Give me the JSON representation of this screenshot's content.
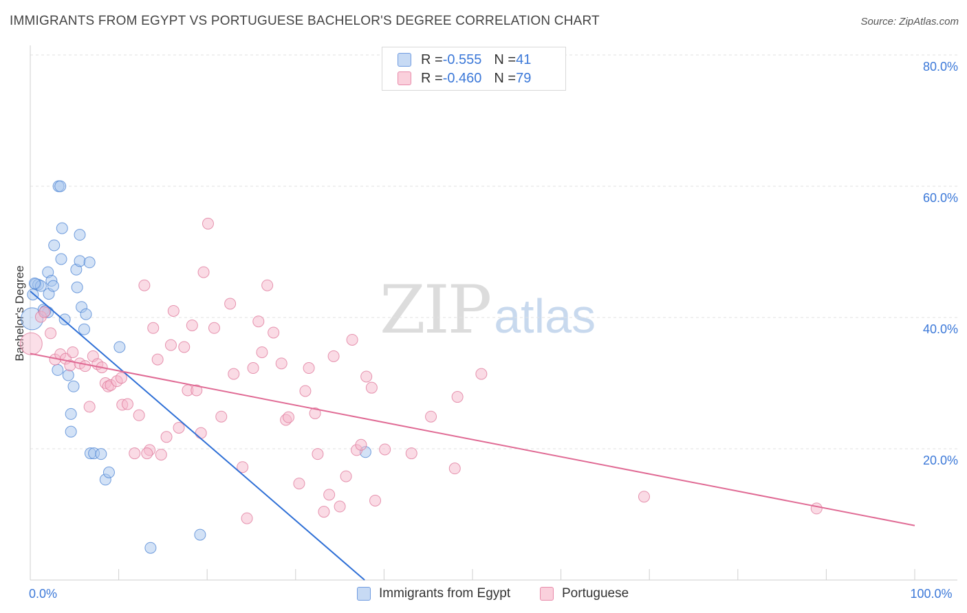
{
  "title": "IMMIGRANTS FROM EGYPT VS PORTUGUESE BACHELOR'S DEGREE CORRELATION CHART",
  "source": "Source: ZipAtlas.com",
  "watermark": {
    "zip": "ZIP",
    "atlas": "atlas"
  },
  "legend": {
    "rows": [
      {
        "r_label": "R = ",
        "r_value": "-0.555",
        "n_label": "N = ",
        "n_value": "41"
      },
      {
        "r_label": "R = ",
        "r_value": "-0.460",
        "n_label": "N = ",
        "n_value": "79"
      }
    ]
  },
  "colors": {
    "egypt_fill": "#a8c6ee",
    "egypt_stroke": "#4f86d4",
    "egypt_line": "#2e6fd6",
    "portuguese_fill": "#f6b8cb",
    "portuguese_stroke": "#e07a9c",
    "portuguese_line": "#e06a94",
    "tick_label": "#3b78d8",
    "grid": "#e2e2e2"
  },
  "chart_data": {
    "type": "scatter",
    "title": "IMMIGRANTS FROM EGYPT VS PORTUGUESE BACHELOR'S DEGREE CORRELATION CHART",
    "xlabel": "",
    "ylabel": "Bachelor's Degree",
    "xlim": [
      0,
      100
    ],
    "ylim": [
      0,
      80
    ],
    "x_tick_labels": [
      {
        "value": 0,
        "label": "0.0%"
      },
      {
        "value": 100,
        "label": "100.0%"
      }
    ],
    "y_tick_labels": [
      {
        "value": 20,
        "label": "20.0%"
      },
      {
        "value": 40,
        "label": "40.0%"
      },
      {
        "value": 60,
        "label": "60.0%"
      },
      {
        "value": 80,
        "label": "80.0%"
      }
    ],
    "grid": true,
    "series": [
      {
        "name": "Immigrants from Egypt",
        "r": -0.555,
        "n": 41,
        "trend": [
          [
            0.0,
            44.0
          ],
          [
            37.8,
            0.0
          ]
        ],
        "points": [
          [
            0.2,
            39.8
          ],
          [
            0.3,
            43.5
          ],
          [
            0.6,
            45.1
          ],
          [
            0.9,
            45.0
          ],
          [
            1.2,
            44.8
          ],
          [
            1.5,
            41.2
          ],
          [
            2.0,
            40.8
          ],
          [
            2.0,
            46.9
          ],
          [
            2.1,
            43.6
          ],
          [
            2.4,
            45.6
          ],
          [
            2.6,
            44.8
          ],
          [
            2.7,
            51.0
          ],
          [
            3.1,
            32.0
          ],
          [
            3.2,
            60.0
          ],
          [
            3.4,
            60.0
          ],
          [
            3.5,
            48.9
          ],
          [
            3.6,
            53.6
          ],
          [
            3.9,
            39.7
          ],
          [
            4.3,
            31.2
          ],
          [
            4.6,
            25.3
          ],
          [
            4.6,
            22.6
          ],
          [
            4.9,
            29.5
          ],
          [
            5.2,
            47.3
          ],
          [
            5.3,
            44.6
          ],
          [
            5.6,
            52.6
          ],
          [
            5.6,
            48.6
          ],
          [
            5.8,
            41.6
          ],
          [
            6.1,
            38.2
          ],
          [
            6.3,
            40.5
          ],
          [
            6.7,
            48.4
          ],
          [
            6.8,
            19.3
          ],
          [
            7.2,
            19.3
          ],
          [
            8.0,
            19.2
          ],
          [
            8.5,
            15.3
          ],
          [
            8.9,
            16.4
          ],
          [
            10.1,
            35.5
          ],
          [
            13.6,
            4.9
          ],
          [
            19.2,
            6.9
          ],
          [
            37.9,
            19.5
          ],
          [
            0.5,
            45.2
          ],
          [
            1.7,
            41.0
          ]
        ]
      },
      {
        "name": "Portuguese",
        "r": -0.46,
        "n": 79,
        "trend": [
          [
            0.0,
            34.5
          ],
          [
            100.0,
            8.3
          ]
        ],
        "points": [
          [
            0.1,
            36.0
          ],
          [
            1.2,
            40.1
          ],
          [
            1.6,
            40.8
          ],
          [
            2.3,
            37.6
          ],
          [
            2.8,
            33.6
          ],
          [
            3.4,
            34.4
          ],
          [
            4.0,
            33.7
          ],
          [
            4.5,
            32.7
          ],
          [
            4.8,
            34.7
          ],
          [
            5.6,
            33.0
          ],
          [
            6.2,
            32.6
          ],
          [
            6.7,
            26.4
          ],
          [
            7.1,
            34.1
          ],
          [
            7.6,
            32.9
          ],
          [
            8.1,
            32.4
          ],
          [
            8.5,
            30.0
          ],
          [
            8.8,
            29.5
          ],
          [
            9.1,
            29.7
          ],
          [
            9.8,
            30.3
          ],
          [
            10.4,
            26.7
          ],
          [
            11.0,
            26.8
          ],
          [
            11.8,
            19.3
          ],
          [
            12.3,
            25.1
          ],
          [
            12.9,
            44.9
          ],
          [
            13.5,
            19.8
          ],
          [
            13.9,
            38.4
          ],
          [
            14.4,
            33.6
          ],
          [
            14.8,
            19.1
          ],
          [
            15.4,
            21.8
          ],
          [
            15.9,
            35.8
          ],
          [
            16.2,
            41.0
          ],
          [
            16.8,
            23.2
          ],
          [
            17.4,
            35.5
          ],
          [
            17.8,
            28.9
          ],
          [
            18.3,
            38.8
          ],
          [
            18.8,
            28.9
          ],
          [
            19.3,
            22.4
          ],
          [
            19.6,
            46.9
          ],
          [
            20.1,
            54.3
          ],
          [
            20.8,
            38.4
          ],
          [
            21.6,
            24.9
          ],
          [
            22.6,
            42.1
          ],
          [
            23.0,
            31.4
          ],
          [
            24.0,
            17.2
          ],
          [
            24.5,
            9.4
          ],
          [
            25.2,
            32.3
          ],
          [
            25.8,
            39.4
          ],
          [
            26.2,
            34.7
          ],
          [
            26.8,
            44.9
          ],
          [
            27.5,
            37.7
          ],
          [
            28.4,
            33.0
          ],
          [
            28.9,
            24.4
          ],
          [
            29.2,
            24.8
          ],
          [
            30.4,
            14.7
          ],
          [
            31.1,
            28.8
          ],
          [
            31.5,
            32.3
          ],
          [
            32.2,
            25.4
          ],
          [
            32.5,
            19.2
          ],
          [
            33.2,
            10.4
          ],
          [
            33.8,
            13.0
          ],
          [
            34.3,
            34.1
          ],
          [
            35.0,
            11.2
          ],
          [
            35.7,
            15.8
          ],
          [
            36.4,
            36.6
          ],
          [
            36.9,
            19.8
          ],
          [
            37.4,
            20.6
          ],
          [
            38.0,
            31.0
          ],
          [
            38.6,
            29.3
          ],
          [
            39.0,
            12.1
          ],
          [
            40.1,
            19.9
          ],
          [
            43.1,
            19.3
          ],
          [
            45.3,
            24.9
          ],
          [
            48.0,
            17.0
          ],
          [
            48.3,
            27.9
          ],
          [
            51.0,
            31.4
          ],
          [
            69.4,
            12.7
          ],
          [
            88.9,
            10.9
          ],
          [
            10.3,
            30.8
          ],
          [
            13.2,
            19.3
          ]
        ]
      }
    ]
  },
  "bottom_legend": [
    {
      "label": "Immigrants from Egypt"
    },
    {
      "label": "Portuguese"
    }
  ]
}
